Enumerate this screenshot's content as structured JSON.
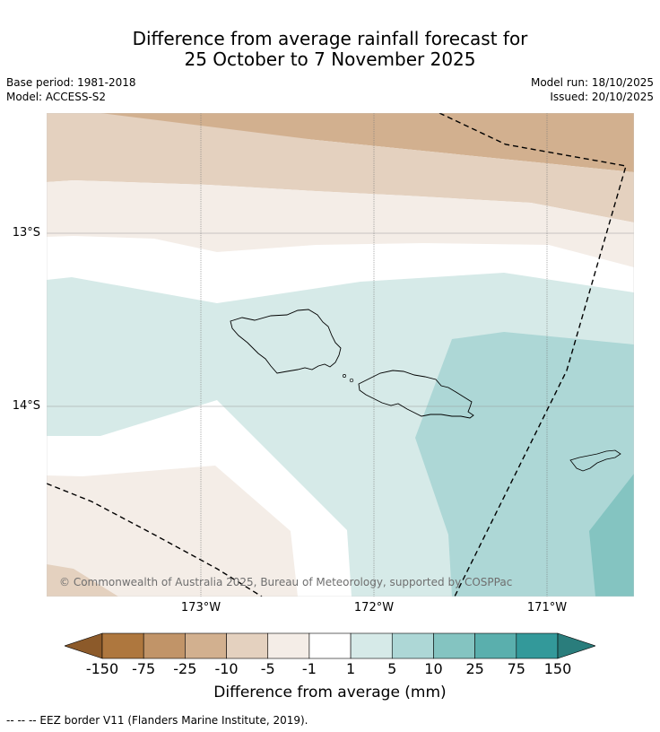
{
  "title": {
    "line1": "Difference from average rainfall forecast for",
    "line2": "25 October to 7 November 2025"
  },
  "meta": {
    "base_period": "Base period: 1981-2018",
    "model": "Model: ACCESS-S2",
    "model_run": "Model run: 18/10/2025",
    "issued": "Issued: 20/10/2025"
  },
  "map": {
    "lat_labels": [
      "13°S",
      "14°S"
    ],
    "lon_labels": [
      "173°W",
      "172°W",
      "171°W"
    ],
    "copyright": "© Commonwealth of Australia 2025, Bureau of Meteorology, supported by COSPPac"
  },
  "colorbar": {
    "title": "Difference from average (mm)",
    "ticks": [
      "-150",
      "-75",
      "-25",
      "-10",
      "-5",
      "-1",
      "1",
      "5",
      "10",
      "25",
      "75",
      "150"
    ],
    "colors": [
      "#8c5a2a",
      "#ae773e",
      "#c19468",
      "#d2b08f",
      "#e4d1bf",
      "#f4ede7",
      "#ffffff",
      "#d6eae8",
      "#add7d6",
      "#84c4c1",
      "#5aafad",
      "#33999a",
      "#2a7d7c"
    ]
  },
  "footer": {
    "legend": "--  --  -- EEZ border V11 (Flanders Marine Institute, 2019)."
  }
}
